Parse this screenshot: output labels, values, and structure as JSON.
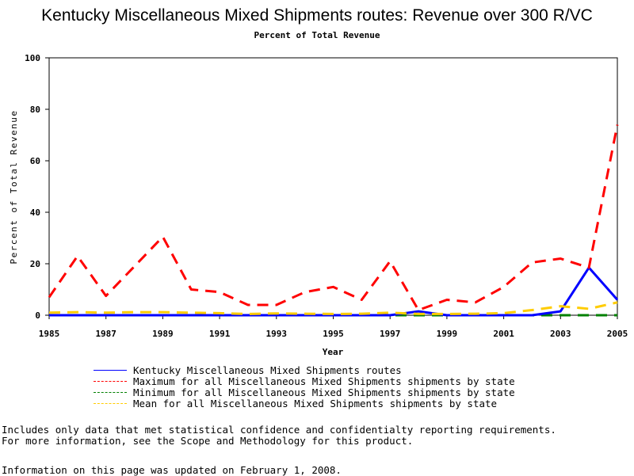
{
  "chart_data": {
    "type": "line",
    "title": "Kentucky Miscellaneous Mixed Shipments routes: Revenue over 300 R/VC",
    "subtitle": "Percent of Total Revenue",
    "xlabel": "Year",
    "ylabel": "Percent of Total Revenue",
    "xlim": [
      1985,
      2005
    ],
    "ylim": [
      0,
      100
    ],
    "x_ticks": [
      1985,
      1987,
      1989,
      1991,
      1993,
      1995,
      1997,
      1999,
      2001,
      2003,
      2005
    ],
    "y_ticks": [
      0,
      20,
      40,
      60,
      80,
      100
    ],
    "x": [
      1985,
      1986,
      1987,
      1988,
      1989,
      1990,
      1991,
      1992,
      1993,
      1994,
      1995,
      1996,
      1997,
      1998,
      1999,
      2000,
      2001,
      2002,
      2003,
      2004,
      2005
    ],
    "series": [
      {
        "name": "Kentucky Miscellaneous Mixed Shipments routes",
        "color": "#0000ff",
        "dash": "solid",
        "values": [
          0,
          0,
          0,
          0,
          0,
          0,
          0,
          0,
          0,
          0,
          0,
          0,
          0,
          1.5,
          0,
          0,
          0,
          0,
          1.5,
          18.5,
          6
        ]
      },
      {
        "name": "Maximum for all Miscellaneous Mixed Shipments shipments by state",
        "color": "#ff0000",
        "dash": "dashed",
        "values": [
          7,
          23,
          7.5,
          19,
          30.5,
          10,
          9,
          4,
          4,
          9,
          11,
          6,
          21,
          2,
          6,
          5,
          11,
          20.5,
          22,
          18.5,
          74
        ]
      },
      {
        "name": "Minimum for all Miscellaneous Mixed Shipments shipments by state",
        "color": "#008000",
        "dash": "dashed",
        "values": [
          0,
          0,
          0,
          0,
          0,
          0,
          0,
          0,
          0,
          0,
          0,
          0,
          0,
          0,
          0,
          0,
          0,
          0,
          0,
          0,
          0
        ]
      },
      {
        "name": "Mean for all Miscellaneous Mixed Shipments shipments by state",
        "color": "#ffcc00",
        "dash": "dashed",
        "values": [
          1,
          1.2,
          1,
          1.2,
          1.2,
          1,
          0.8,
          0.5,
          0.7,
          0.6,
          0.5,
          0.6,
          1,
          0.5,
          0.5,
          0.6,
          0.8,
          2,
          3.5,
          2.5,
          5
        ]
      }
    ],
    "legend_placement": "bottom-left",
    "grid": false
  },
  "notes": [
    "Includes only data that met statistical confidence and confidentialty reporting requirements.",
    "For more information, see the Scope and Methodology for this product."
  ],
  "updated": "Information on this page was updated on February 1, 2008."
}
